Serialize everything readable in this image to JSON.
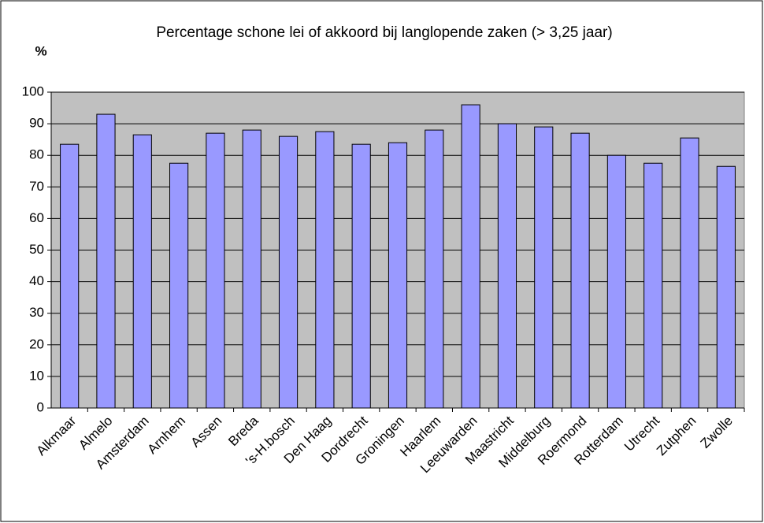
{
  "chart_data": {
    "type": "bar",
    "title": "Percentage schone lei of akkoord bij langlopende zaken (> 3,25 jaar)",
    "y_label": "%",
    "categories": [
      "Alkmaar",
      "Almelo",
      "Amsterdam",
      "Arnhem",
      "Assen",
      "Breda",
      "'s-H.bosch",
      "Den Haag",
      "Dordrecht",
      "Groningen",
      "Haarlem",
      "Leeuwarden",
      "Maastricht",
      "Middelburg",
      "Roermond",
      "Rotterdam",
      "Utrecht",
      "Zutphen",
      "Zwolle"
    ],
    "values": [
      83.5,
      93,
      86.5,
      77.5,
      87,
      88,
      86,
      87.5,
      83.5,
      84,
      88,
      96,
      90,
      89,
      87,
      80,
      77.5,
      85.5,
      76.5
    ],
    "color": "#9999ff",
    "ylim": [
      0,
      100
    ],
    "yticks": [
      0,
      10,
      20,
      30,
      40,
      50,
      60,
      70,
      80,
      90,
      100
    ],
    "grid": true
  }
}
